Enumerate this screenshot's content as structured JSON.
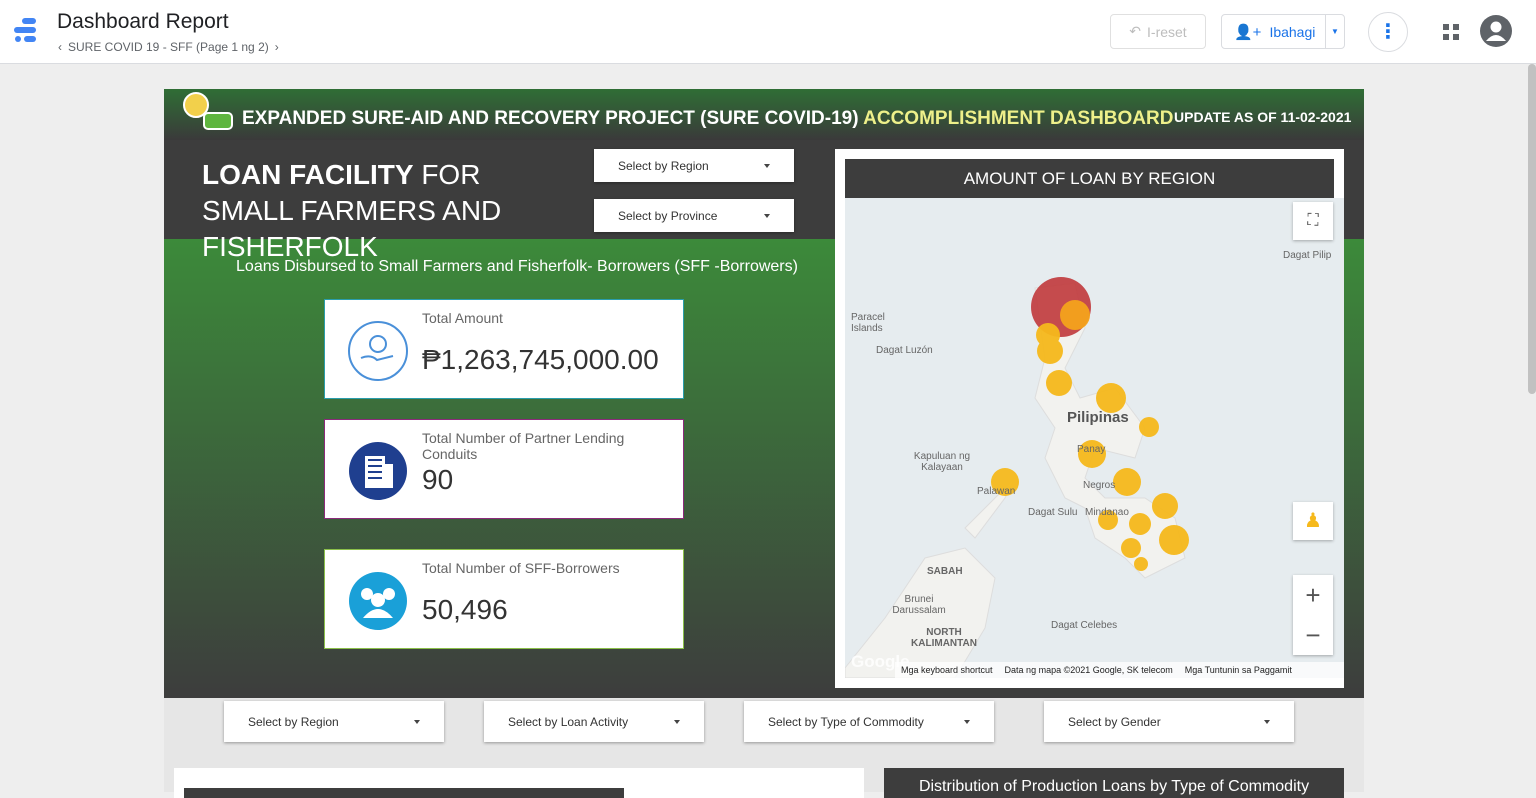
{
  "header": {
    "title": "Dashboard Report",
    "breadcrumb": "SURE COVID 19 - SFF (Page 1 ng 2)",
    "reset": "I-reset",
    "share": "Ibahagi"
  },
  "banner": {
    "title_main": "EXPANDED SURE-AID AND RECOVERY PROJECT (SURE COVID-19)",
    "title_accent": "ACCOMPLISHMENT DASHBOARD",
    "update": "UPDATE AS OF 11-02-2021"
  },
  "section": {
    "title_bold": "LOAN FACILITY",
    "title_rest": "FOR SMALL FARMERS AND FISHERFOLK",
    "subtitle": "Loans Disbursed to Small Farmers and Fisherfolk- Borrowers (SFF -Borrowers)"
  },
  "filters_top": [
    "Select by Region",
    "Select by Province"
  ],
  "kpis": [
    {
      "label": "Total Amount",
      "value": "₱1,263,745,000.00"
    },
    {
      "label": "Total Number of Partner Lending Conduits",
      "value": "90"
    },
    {
      "label": "Total Number of SFF-Borrowers",
      "value": "50,496"
    }
  ],
  "map": {
    "title": "AMOUNT OF LOAN BY REGION",
    "labels": [
      "Dagat Pilip",
      "Paracel Islands",
      "Dagat Luzón",
      "Pilipinas",
      "Kapuluan ng Kalayaan",
      "Palawan",
      "Panay",
      "Negros",
      "Dagat Sulu",
      "Mindanao",
      "SABAH",
      "Brunei Darussalam",
      "NORTH KALIMANTAN",
      "Dagat Celebes"
    ],
    "footer": [
      "Google",
      "Mga keyboard shortcut",
      "Data ng mapa ©2021 Google, SK telecom",
      "Mga Tuntunin sa Paggamit"
    ]
  },
  "filters_bottom": [
    "Select by Region",
    "Select by Loan Activity",
    "Select by Type of Commodity",
    "Select by Gender"
  ],
  "lower": {
    "right_title": "Distribution of Production Loans by Type of Commodity"
  }
}
